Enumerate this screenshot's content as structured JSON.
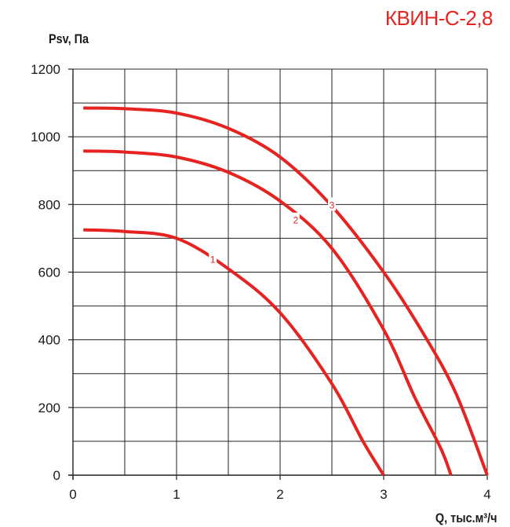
{
  "header": {
    "model_title": "КВИН-С-2,8"
  },
  "colors": {
    "accent": "#e52421",
    "grid": "#222222",
    "text": "#1a1a1a"
  },
  "chart_data": {
    "type": "line",
    "title": "КВИН-С-2,8",
    "xlabel": "Q, тыс.м³/ч",
    "ylabel": "Psv, Па",
    "xlim": [
      0,
      4
    ],
    "ylim": [
      0,
      1200
    ],
    "x_ticks": [
      0,
      1,
      2,
      3,
      4
    ],
    "y_ticks": [
      0,
      200,
      400,
      600,
      800,
      1000,
      1200
    ],
    "grid": true,
    "series": [
      {
        "name": "1",
        "label_at": [
          1.35,
          640
        ],
        "x": [
          0.1,
          0.5,
          1.0,
          1.5,
          2.0,
          2.5,
          2.8,
          3.0
        ],
        "y": [
          725,
          720,
          700,
          610,
          480,
          270,
          100,
          0
        ]
      },
      {
        "name": "2",
        "label_at": [
          2.15,
          755
        ],
        "x": [
          0.1,
          0.5,
          1.0,
          1.5,
          2.0,
          2.5,
          3.0,
          3.3,
          3.55,
          3.65
        ],
        "y": [
          958,
          955,
          940,
          895,
          810,
          670,
          430,
          230,
          80,
          0
        ]
      },
      {
        "name": "3",
        "label_at": [
          2.5,
          800
        ],
        "x": [
          0.1,
          0.5,
          1.0,
          1.5,
          2.0,
          2.5,
          3.0,
          3.4,
          3.7,
          4.0
        ],
        "y": [
          1085,
          1083,
          1070,
          1025,
          940,
          795,
          600,
          410,
          240,
          0
        ]
      }
    ]
  }
}
